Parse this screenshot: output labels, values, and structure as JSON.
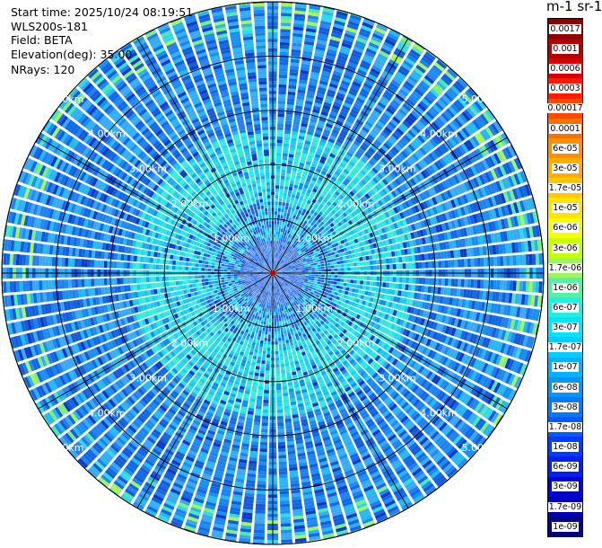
{
  "header": {
    "start_time": "Start time: 2025/10/24 08:19:51",
    "instrument": "WLS200s-181",
    "field": "Field: BETA",
    "elevation": "Elevation(deg): 35.00",
    "nrays": "NRays: 120"
  },
  "colorbar": {
    "title": "m-1 sr-1",
    "labels": [
      "0.0017",
      "0.001",
      "0.0006",
      "0.0003",
      "0.00017",
      "0.0001",
      "6e-05",
      "3e-05",
      "1.7e-05",
      "1e-05",
      "6e-06",
      "3e-06",
      "1.7e-06",
      "1e-06",
      "6e-07",
      "3e-07",
      "1.7e-07",
      "1e-07",
      "6e-08",
      "3e-08",
      "1.7e-08",
      "1e-08",
      "6e-09",
      "3e-09",
      "1.7e-09",
      "1e-09"
    ],
    "colors": [
      "#8b0000",
      "#b00000",
      "#d80000",
      "#ff1a00",
      "#ff4a00",
      "#ff6f00",
      "#ff8f00",
      "#ffae00",
      "#ffc800",
      "#ffe400",
      "#f4ff00",
      "#c6ff00",
      "#9ef55e",
      "#55f0a5",
      "#21f0e0",
      "#00e5ff",
      "#00ccff",
      "#00b2ff",
      "#0096ff",
      "#007aff",
      "#005cff",
      "#003cff",
      "#0020f0",
      "#0000d8",
      "#0000b0",
      "#000080"
    ]
  },
  "range_labels": [
    "1.00km",
    "2.00km",
    "3.00km",
    "4.00km",
    "5.00km"
  ],
  "scan": {
    "max_range_km": 5,
    "gate_km": 0.06,
    "near_color": "#3a78e8",
    "mid_colors": [
      "#1fa8f0",
      "#19c8ee",
      "#2ee8e0",
      "#24d8f0",
      "#0e8ef0"
    ],
    "far_colors": [
      "#1a8ef2",
      "#0f6ae8",
      "#3aa8f5",
      "#2080f0",
      "#145bd8",
      "#26b8f0"
    ],
    "edge_colors": [
      "#7ef07a",
      "#a8f55a",
      "#4ee8b0",
      "#32d8e8"
    ]
  }
}
